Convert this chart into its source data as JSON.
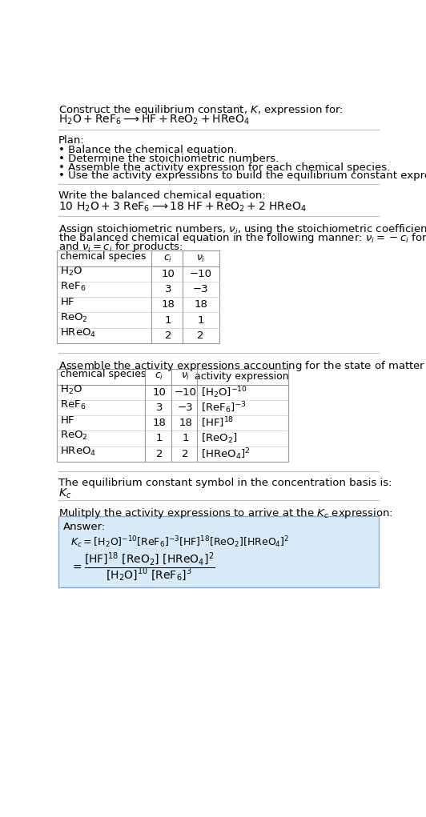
{
  "title_line1": "Construct the equilibrium constant, $K$, expression for:",
  "title_line2": "$\\mathrm{H_2O + ReF_6 \\longrightarrow HF + ReO_2 + HReO_4}$",
  "plan_header": "Plan:",
  "plan_items": [
    "• Balance the chemical equation.",
    "• Determine the stoichiometric numbers.",
    "• Assemble the activity expression for each chemical species.",
    "• Use the activity expressions to build the equilibrium constant expression."
  ],
  "balanced_header": "Write the balanced chemical equation:",
  "balanced_eq": "$\\mathrm{10\\ H_2O + 3\\ ReF_6 \\longrightarrow 18\\ HF + ReO_2 + 2\\ HReO_4}$",
  "stoich_intro_lines": [
    "Assign stoichiometric numbers, $\\nu_i$, using the stoichiometric coefficients, $c_i$, from",
    "the balanced chemical equation in the following manner: $\\nu_i = -c_i$ for reactants",
    "and $\\nu_i = c_i$ for products:"
  ],
  "table1_headers": [
    "chemical species",
    "$c_i$",
    "$\\nu_i$"
  ],
  "table1_rows": [
    [
      "$\\mathrm{H_2O}$",
      "10",
      "−10"
    ],
    [
      "$\\mathrm{ReF_6}$",
      "3",
      "−3"
    ],
    [
      "$\\mathrm{HF}$",
      "18",
      "18"
    ],
    [
      "$\\mathrm{ReO_2}$",
      "1",
      "1"
    ],
    [
      "$\\mathrm{HReO_4}$",
      "2",
      "2"
    ]
  ],
  "assemble_intro": "Assemble the activity expressions accounting for the state of matter and $\\nu_i$:",
  "table2_headers": [
    "chemical species",
    "$c_i$",
    "$\\nu_i$",
    "activity expression"
  ],
  "table2_rows": [
    [
      "$\\mathrm{H_2O}$",
      "10",
      "−10",
      "$[\\mathrm{H_2O}]^{-10}$"
    ],
    [
      "$\\mathrm{ReF_6}$",
      "3",
      "−3",
      "$[\\mathrm{ReF_6}]^{-3}$"
    ],
    [
      "$\\mathrm{HF}$",
      "18",
      "18",
      "$[\\mathrm{HF}]^{18}$"
    ],
    [
      "$\\mathrm{ReO_2}$",
      "1",
      "1",
      "$[\\mathrm{ReO_2}]$"
    ],
    [
      "$\\mathrm{HReO_4}$",
      "2",
      "2",
      "$[\\mathrm{HReO_4}]^2$"
    ]
  ],
  "kc_symbol_text": "The equilibrium constant symbol in the concentration basis is:",
  "kc_symbol": "$K_c$",
  "multiply_text": "Mulitply the activity expressions to arrive at the $K_c$ expression:",
  "answer_box_color": "#d8eaf7",
  "answer_label": "Answer:",
  "bg_color": "#ffffff",
  "font_size": 9.5
}
